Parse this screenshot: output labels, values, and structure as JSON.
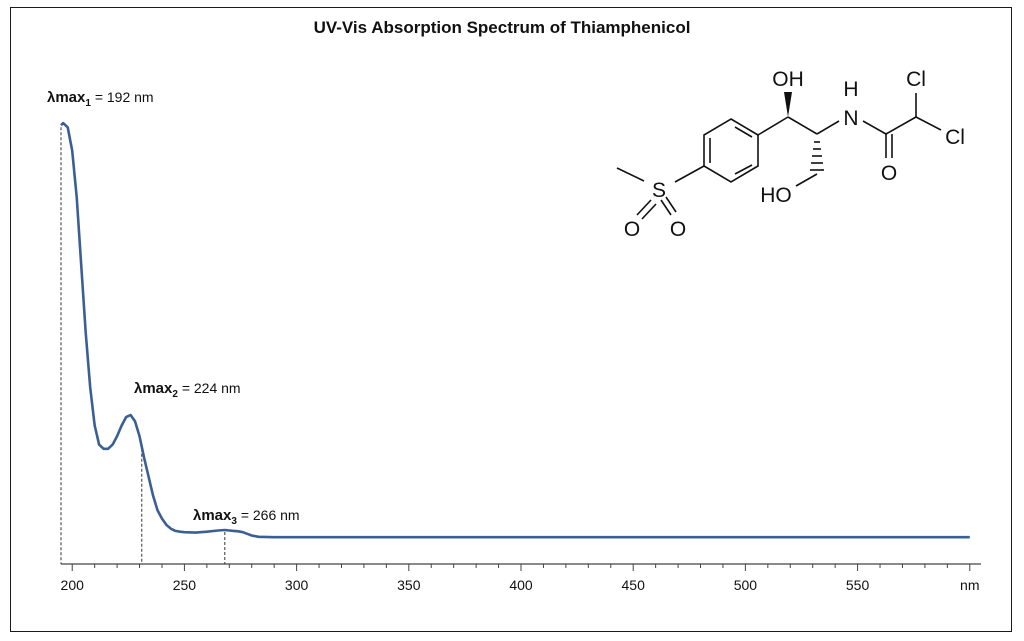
{
  "chart_data": {
    "type": "line",
    "title": "UV-Vis Absorption Spectrum of Thiamphenicol",
    "xlabel": "nm",
    "ylabel": "",
    "xlim": [
      195,
      605
    ],
    "ylim": [
      0,
      1.0
    ],
    "grid": false,
    "legend": "none",
    "x_ticks": [
      "200",
      "250",
      "300",
      "350",
      "400",
      "450",
      "500",
      "550",
      "nm"
    ],
    "series": [
      {
        "color": "#3b5f94",
        "x": [
          195,
          196,
          198,
          200,
          202,
          204,
          206,
          208,
          210,
          212,
          214,
          216,
          218,
          220,
          222,
          224,
          226,
          228,
          230,
          232,
          234,
          236,
          238,
          240,
          242,
          244,
          246,
          248,
          250,
          255,
          260,
          265,
          268,
          270,
          272,
          274,
          276,
          278,
          280,
          283,
          290,
          300,
          350,
          400,
          450,
          500,
          550,
          600
        ],
        "y": [
          0.99,
          0.995,
          0.985,
          0.93,
          0.82,
          0.66,
          0.5,
          0.37,
          0.28,
          0.235,
          0.225,
          0.225,
          0.235,
          0.255,
          0.28,
          0.3,
          0.305,
          0.29,
          0.255,
          0.205,
          0.16,
          0.115,
          0.08,
          0.06,
          0.045,
          0.036,
          0.031,
          0.029,
          0.028,
          0.027,
          0.029,
          0.032,
          0.033,
          0.032,
          0.031,
          0.03,
          0.028,
          0.024,
          0.02,
          0.017,
          0.016,
          0.016,
          0.016,
          0.016,
          0.016,
          0.016,
          0.016,
          0.016
        ]
      }
    ],
    "annotations": [
      {
        "symbol": "λ",
        "main": "max",
        "sub": "1",
        "text": " = 192 nm",
        "x": 195
      },
      {
        "symbol": "λ",
        "main": "max",
        "sub": "2",
        "text": " = 224 nm",
        "x": 231
      },
      {
        "symbol": "λ",
        "main": "max",
        "sub": "3",
        "text": " = 266 nm",
        "x": 268
      }
    ]
  },
  "structure": {
    "atoms": {
      "oh_top": "OH",
      "h": "H",
      "n": "N",
      "cl1": "Cl",
      "cl2": "Cl",
      "o_carbonyl": "O",
      "ho": "HO",
      "s": "S",
      "o1": "O",
      "o2": "O"
    }
  }
}
